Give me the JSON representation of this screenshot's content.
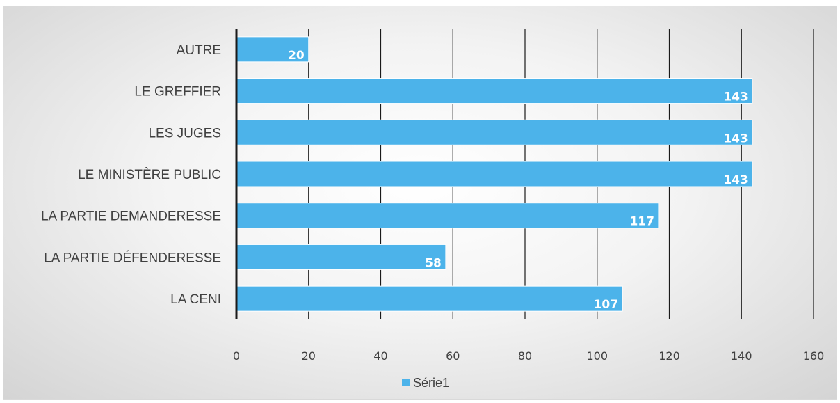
{
  "chart_data": {
    "type": "bar",
    "orientation": "horizontal",
    "categories": [
      "LA CENI",
      "LA PARTIE DÉFENDERESSE",
      "LA PARTIE DEMANDERESSE",
      "LE MINISTÈRE PUBLIC",
      "LES JUGES",
      "LE GREFFIER",
      "AUTRE"
    ],
    "series": [
      {
        "name": "Série1",
        "values": [
          107,
          58,
          117,
          143,
          143,
          143,
          20
        ],
        "color": "#4cb3ea"
      }
    ],
    "xlim": [
      0,
      160
    ],
    "xticks": [
      0,
      20,
      40,
      60,
      80,
      100,
      120,
      140,
      160
    ],
    "title": "",
    "xlabel": "",
    "ylabel": "",
    "grid": true,
    "legend_position": "bottom",
    "data_labels": true
  }
}
